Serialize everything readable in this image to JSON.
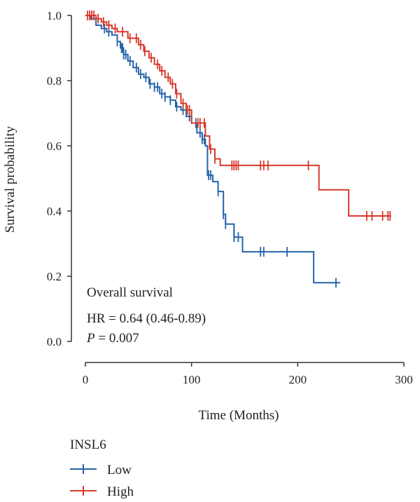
{
  "chart_data": {
    "type": "line",
    "subtype": "kaplan-meier",
    "xlabel": "Time (Months)",
    "ylabel": "Survival probability",
    "xlim": [
      0,
      300
    ],
    "ylim": [
      0,
      1.0
    ],
    "xticks": [
      0,
      100,
      200,
      300
    ],
    "yticks": [
      0.0,
      0.2,
      0.4,
      0.6,
      0.8,
      1.0
    ],
    "grid": false,
    "annotation": {
      "line1": "Overall survival",
      "line2": "HR = 0.64 (0.46-0.89)",
      "line3_var": "P",
      "line3_rest": " = 0.007"
    },
    "legend": {
      "title": "INSL6",
      "placement": "bottom-left",
      "entries": [
        "Low",
        "High"
      ]
    },
    "series": [
      {
        "name": "Low",
        "color": "#2464a8",
        "steps": [
          [
            0,
            1.0
          ],
          [
            5,
            0.99
          ],
          [
            10,
            0.97
          ],
          [
            15,
            0.96
          ],
          [
            20,
            0.95
          ],
          [
            25,
            0.94
          ],
          [
            30,
            0.92
          ],
          [
            33,
            0.9
          ],
          [
            36,
            0.88
          ],
          [
            40,
            0.86
          ],
          [
            45,
            0.84
          ],
          [
            50,
            0.82
          ],
          [
            55,
            0.81
          ],
          [
            60,
            0.79
          ],
          [
            65,
            0.78
          ],
          [
            70,
            0.76
          ],
          [
            75,
            0.75
          ],
          [
            80,
            0.74
          ],
          [
            85,
            0.72
          ],
          [
            90,
            0.71
          ],
          [
            95,
            0.69
          ],
          [
            100,
            0.67
          ],
          [
            105,
            0.64
          ],
          [
            110,
            0.62
          ],
          [
            113,
            0.6
          ],
          [
            115,
            0.51
          ],
          [
            120,
            0.49
          ],
          [
            125,
            0.46
          ],
          [
            130,
            0.39
          ],
          [
            132,
            0.36
          ],
          [
            140,
            0.32
          ],
          [
            148,
            0.275
          ],
          [
            215,
            0.18
          ],
          [
            240,
            0.18
          ]
        ],
        "censor_x": [
          18,
          22,
          30,
          34,
          35,
          36,
          38,
          42,
          48,
          52,
          57,
          61,
          65,
          68,
          72,
          75,
          80,
          86,
          92,
          98,
          104,
          108,
          110,
          112,
          116,
          118,
          125,
          130,
          132,
          140,
          144,
          165,
          168,
          190,
          236
        ]
      },
      {
        "name": "High",
        "color": "#d8392b",
        "steps": [
          [
            0,
            1.0
          ],
          [
            10,
            0.99
          ],
          [
            15,
            0.98
          ],
          [
            20,
            0.97
          ],
          [
            25,
            0.96
          ],
          [
            30,
            0.95
          ],
          [
            40,
            0.93
          ],
          [
            50,
            0.91
          ],
          [
            55,
            0.89
          ],
          [
            60,
            0.87
          ],
          [
            65,
            0.85
          ],
          [
            70,
            0.83
          ],
          [
            75,
            0.81
          ],
          [
            80,
            0.79
          ],
          [
            85,
            0.76
          ],
          [
            90,
            0.73
          ],
          [
            95,
            0.71
          ],
          [
            100,
            0.67
          ],
          [
            113,
            0.63
          ],
          [
            117,
            0.59
          ],
          [
            122,
            0.56
          ],
          [
            127,
            0.54
          ],
          [
            220,
            0.465
          ],
          [
            248,
            0.385
          ],
          [
            288,
            0.385
          ]
        ],
        "censor_x": [
          2,
          4,
          6,
          8,
          12,
          17,
          22,
          28,
          35,
          42,
          48,
          52,
          56,
          62,
          68,
          72,
          78,
          82,
          86,
          92,
          96,
          98,
          106,
          108,
          112,
          118,
          122,
          138,
          140,
          142,
          144,
          165,
          168,
          172,
          210,
          265,
          270,
          280,
          285,
          287
        ]
      }
    ]
  }
}
